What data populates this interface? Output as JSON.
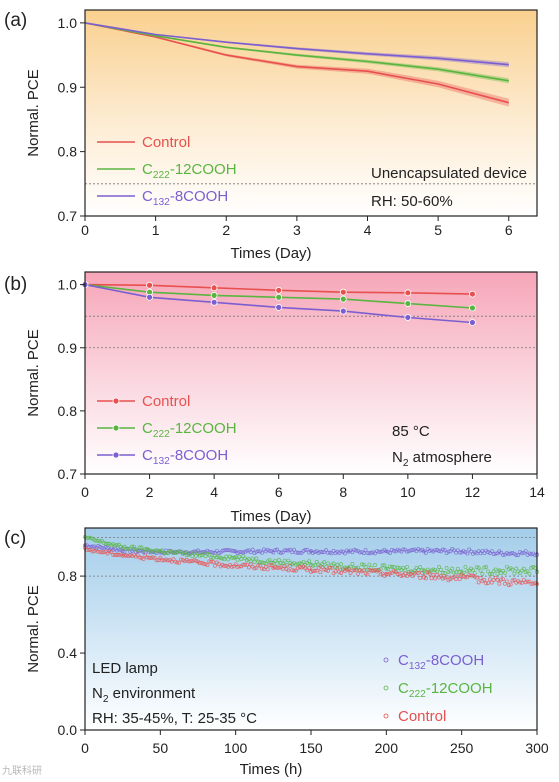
{
  "chart_data": [
    {
      "panel_label": "(a)",
      "type": "line",
      "xlabel": "Times (Day)",
      "ylabel": "Normal. PCE",
      "xlim": [
        0,
        6.4
      ],
      "ylim": [
        0.7,
        1.02
      ],
      "xticks": [
        0,
        1,
        2,
        3,
        4,
        5,
        6
      ],
      "yticks": [
        "0.7",
        "0.8",
        "0.9",
        "1.0"
      ],
      "ref_lines": [
        0.75
      ],
      "background": "gradient orange-to-white",
      "annotations": [
        "Unencapsulated device",
        "RH: 50-60%"
      ],
      "legend_position": "bottom-left",
      "series": [
        {
          "name": "Control",
          "name_parts": [
            "Control"
          ],
          "color": "#e8504f",
          "x": [
            0,
            1,
            2,
            3,
            4,
            5,
            6
          ],
          "y": [
            1.0,
            0.978,
            0.95,
            0.932,
            0.925,
            0.905,
            0.876
          ],
          "band": 0.006
        },
        {
          "name": "C222-12COOH",
          "name_parts": [
            "C",
            "222",
            "-12COOH"
          ],
          "color": "#59b540",
          "x": [
            0,
            1,
            2,
            3,
            4,
            5,
            6
          ],
          "y": [
            1.0,
            0.98,
            0.962,
            0.95,
            0.94,
            0.928,
            0.91
          ],
          "band": 0.004
        },
        {
          "name": "C132-8COOH",
          "name_parts": [
            "C",
            "132",
            "-8COOH"
          ],
          "color": "#7b5fd1",
          "x": [
            0,
            1,
            2,
            3,
            4,
            5,
            6
          ],
          "y": [
            1.0,
            0.982,
            0.97,
            0.96,
            0.952,
            0.945,
            0.935
          ],
          "band": 0.004
        }
      ]
    },
    {
      "panel_label": "(b)",
      "type": "line",
      "xlabel": "Times (Day)",
      "ylabel": "Normal. PCE",
      "xlim": [
        0,
        14
      ],
      "ylim": [
        0.7,
        1.02
      ],
      "xticks": [
        0,
        2,
        4,
        6,
        8,
        10,
        12,
        14
      ],
      "yticks": [
        "0.7",
        "0.8",
        "0.9",
        "1.0"
      ],
      "ref_lines": [
        0.95,
        0.9
      ],
      "background": "gradient pink-to-white",
      "annotations": [
        "85 °C",
        "N",
        "2",
        " atmosphere"
      ],
      "legend_position": "bottom-left",
      "series": [
        {
          "name": "Control",
          "name_parts": [
            "Control"
          ],
          "color": "#e8504f",
          "x": [
            0,
            2,
            4,
            6,
            8,
            10,
            12
          ],
          "y": [
            1.0,
            0.999,
            0.995,
            0.991,
            0.988,
            0.987,
            0.985
          ]
        },
        {
          "name": "C222-12COOH",
          "name_parts": [
            "C",
            "222",
            "-12COOH"
          ],
          "color": "#59b540",
          "x": [
            0,
            2,
            4,
            6,
            8,
            10,
            12
          ],
          "y": [
            1.0,
            0.988,
            0.983,
            0.98,
            0.977,
            0.97,
            0.963
          ]
        },
        {
          "name": "C132-8COOH",
          "name_parts": [
            "C",
            "132",
            "-8COOH"
          ],
          "color": "#7b5fd1",
          "x": [
            0,
            2,
            4,
            6,
            8,
            10,
            12
          ],
          "y": [
            1.0,
            0.98,
            0.972,
            0.964,
            0.958,
            0.948,
            0.94
          ]
        }
      ]
    },
    {
      "panel_label": "(c)",
      "type": "scatter",
      "xlabel": "Times (h)",
      "ylabel": "Normal. PCE",
      "xlim": [
        0,
        300
      ],
      "ylim": [
        0.0,
        1.05
      ],
      "xticks": [
        0,
        50,
        100,
        150,
        200,
        250,
        300
      ],
      "yticks": [
        "0.0",
        "0.4",
        "0.8"
      ],
      "ref_lines": [
        1.0,
        0.8
      ],
      "background": "gradient blue-to-white",
      "annotations": [
        "LED lamp",
        "N",
        "2",
        " environment",
        "RH: 35-45%, T: 25-35 °C"
      ],
      "legend_position": "bottom-right",
      "series": [
        {
          "name": "C132-8COOH",
          "name_parts": [
            "C",
            "132",
            "-8COOH"
          ],
          "color": "#7b5fd1",
          "x": [
            0,
            25,
            50,
            75,
            100,
            125,
            150,
            175,
            200,
            225,
            250,
            275,
            300
          ],
          "y": [
            0.96,
            0.935,
            0.925,
            0.925,
            0.928,
            0.93,
            0.93,
            0.928,
            0.928,
            0.93,
            0.93,
            0.92,
            0.92
          ]
        },
        {
          "name": "C222-12COOH",
          "name_parts": [
            "C",
            "222",
            "-12COOH"
          ],
          "color": "#59b540",
          "x": [
            0,
            25,
            50,
            75,
            100,
            125,
            150,
            175,
            200,
            225,
            250,
            275,
            300
          ],
          "y": [
            1.0,
            0.95,
            0.93,
            0.91,
            0.895,
            0.875,
            0.865,
            0.85,
            0.84,
            0.835,
            0.83,
            0.83,
            0.83
          ]
        },
        {
          "name": "Control",
          "name_parts": [
            "Control"
          ],
          "color": "#e8504f",
          "x": [
            0,
            25,
            50,
            75,
            100,
            125,
            150,
            175,
            200,
            225,
            250,
            275,
            300
          ],
          "y": [
            0.94,
            0.91,
            0.89,
            0.87,
            0.855,
            0.845,
            0.835,
            0.825,
            0.815,
            0.805,
            0.79,
            0.775,
            0.76
          ]
        }
      ]
    }
  ],
  "watermark": "九联科研"
}
